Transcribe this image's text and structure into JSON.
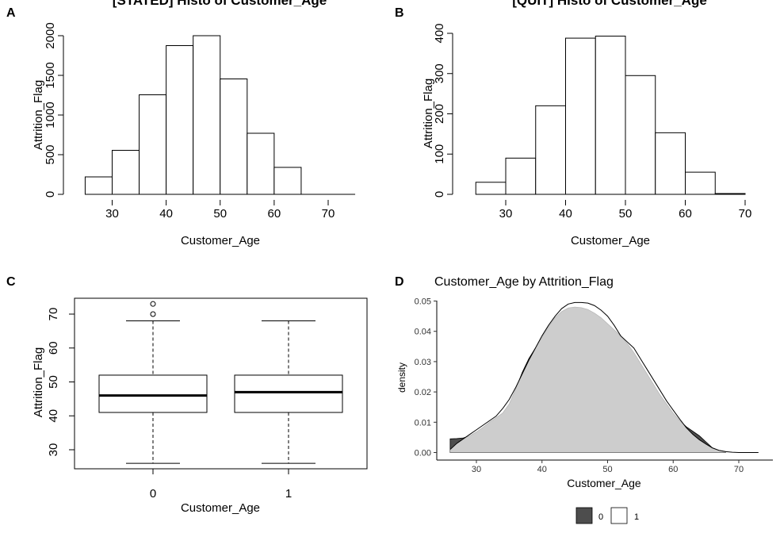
{
  "panels": {
    "A": {
      "letter": "A",
      "title": "[STATED] Histo of Customer_Age",
      "xlabel": "Customer_Age",
      "ylabel": "Attrition_Flag"
    },
    "B": {
      "letter": "B",
      "title": "[QUIT] Histo of Customer_Age",
      "xlabel": "Customer_Age",
      "ylabel": "Attrition_Flag"
    },
    "C": {
      "letter": "C",
      "xlabel": "Customer_Age",
      "ylabel": "Attrition_Flag"
    },
    "D": {
      "letter": "D",
      "title": "Customer_Age  by  Attrition_Flag",
      "xlabel": "Customer_Age",
      "ylabel": "density",
      "legend": [
        "0",
        "1"
      ]
    }
  },
  "chart_data": [
    {
      "panel": "A",
      "type": "bar",
      "title": "[STATED] Histo of Customer_Age",
      "xlabel": "Customer_Age",
      "ylabel": "Attrition_Flag",
      "bins": [
        [
          25,
          30
        ],
        [
          30,
          35
        ],
        [
          35,
          40
        ],
        [
          40,
          45
        ],
        [
          45,
          50
        ],
        [
          50,
          55
        ],
        [
          55,
          60
        ],
        [
          60,
          65
        ]
      ],
      "values": [
        220,
        555,
        1255,
        1875,
        2000,
        1455,
        770,
        340
      ],
      "xticks": [
        30,
        40,
        50,
        60,
        70
      ],
      "yticks": [
        0,
        500,
        1000,
        1500,
        2000
      ],
      "xlim": [
        25,
        75
      ],
      "ylim": [
        0,
        2000
      ]
    },
    {
      "panel": "B",
      "type": "bar",
      "title": "[QUIT] Histo of Customer_Age",
      "xlabel": "Customer_Age",
      "ylabel": "Attrition_Flag",
      "bins": [
        [
          25,
          30
        ],
        [
          30,
          35
        ],
        [
          35,
          40
        ],
        [
          40,
          45
        ],
        [
          45,
          50
        ],
        [
          50,
          55
        ],
        [
          55,
          60
        ],
        [
          60,
          65
        ],
        [
          65,
          70
        ]
      ],
      "values": [
        30,
        90,
        220,
        388,
        393,
        295,
        153,
        55,
        2
      ],
      "xticks": [
        30,
        40,
        50,
        60,
        70
      ],
      "yticks": [
        0,
        100,
        200,
        300,
        400
      ],
      "xlim": [
        25,
        70
      ],
      "ylim": [
        0,
        400
      ]
    },
    {
      "panel": "C",
      "type": "box",
      "xlabel": "Customer_Age",
      "ylabel": "Attrition_Flag",
      "categories": [
        "0",
        "1"
      ],
      "boxes": [
        {
          "category": "0",
          "whisker_low": 26,
          "q1": 41,
          "median": 46,
          "q3": 52,
          "whisker_high": 68,
          "outliers": [
            70,
            73
          ]
        },
        {
          "category": "1",
          "whisker_low": 26,
          "q1": 41,
          "median": 47,
          "q3": 52,
          "whisker_high": 68,
          "outliers": []
        }
      ],
      "yticks": [
        30,
        40,
        50,
        60,
        70
      ],
      "ylim": [
        24,
        75
      ]
    },
    {
      "panel": "D",
      "type": "area",
      "title": "Customer_Age  by  Attrition_Flag",
      "xlabel": "Customer_Age",
      "ylabel": "density",
      "xticks": [
        30,
        40,
        50,
        60,
        70
      ],
      "yticks": [
        0.0,
        0.01,
        0.02,
        0.03,
        0.04,
        0.05
      ],
      "ytick_labels": [
        "0.00",
        "0.01",
        "0.02",
        "0.03",
        "0.04",
        "0.05"
      ],
      "xlim": [
        24.5,
        74.5
      ],
      "ylim": [
        -0.0025,
        0.0515
      ],
      "legend_position": "bottom",
      "series": [
        {
          "name": "0",
          "color": "#4d4d4d",
          "x": [
            26,
            27,
            28,
            29,
            30,
            31,
            32,
            33,
            34,
            35,
            36,
            37,
            38,
            39,
            40,
            41,
            42,
            43,
            44,
            45,
            46,
            47,
            48,
            49,
            50,
            51,
            52,
            53,
            54,
            55,
            56,
            57,
            58,
            59,
            60,
            61,
            62,
            63,
            64,
            65,
            66,
            67,
            68
          ],
          "y": [
            0.0045,
            0.0046,
            0.0048,
            0.0055,
            0.0068,
            0.0083,
            0.01,
            0.0115,
            0.013,
            0.016,
            0.021,
            0.0265,
            0.031,
            0.0345,
            0.038,
            0.0415,
            0.0445,
            0.0465,
            0.0477,
            0.048,
            0.0478,
            0.0472,
            0.046,
            0.0445,
            0.0425,
            0.0405,
            0.0385,
            0.036,
            0.033,
            0.0295,
            0.026,
            0.0225,
            0.019,
            0.016,
            0.013,
            0.0105,
            0.0085,
            0.007,
            0.0055,
            0.0035,
            0.0015,
            0.0007,
            0.0003
          ]
        },
        {
          "name": "1",
          "color": "#ffffff",
          "x": [
            26,
            27,
            28,
            29,
            30,
            31,
            32,
            33,
            34,
            35,
            36,
            37,
            38,
            39,
            40,
            41,
            42,
            43,
            44,
            45,
            46,
            47,
            48,
            49,
            50,
            51,
            52,
            53,
            54,
            55,
            56,
            57,
            58,
            59,
            60,
            61,
            62,
            63,
            64,
            65,
            66,
            67,
            68,
            69,
            70,
            71,
            72,
            73
          ],
          "y": [
            0.001,
            0.003,
            0.0045,
            0.006,
            0.0075,
            0.009,
            0.0105,
            0.012,
            0.0145,
            0.0175,
            0.0215,
            0.026,
            0.0305,
            0.0345,
            0.0385,
            0.042,
            0.045,
            0.0475,
            0.049,
            0.0495,
            0.0495,
            0.0493,
            0.0485,
            0.047,
            0.045,
            0.042,
            0.0385,
            0.0365,
            0.0345,
            0.031,
            0.0275,
            0.024,
            0.0205,
            0.017,
            0.014,
            0.011,
            0.0082,
            0.006,
            0.0042,
            0.0028,
            0.0015,
            0.0007,
            0.0003,
            0.0001,
            0.0,
            0.0,
            0.0,
            0.0
          ]
        }
      ]
    }
  ]
}
